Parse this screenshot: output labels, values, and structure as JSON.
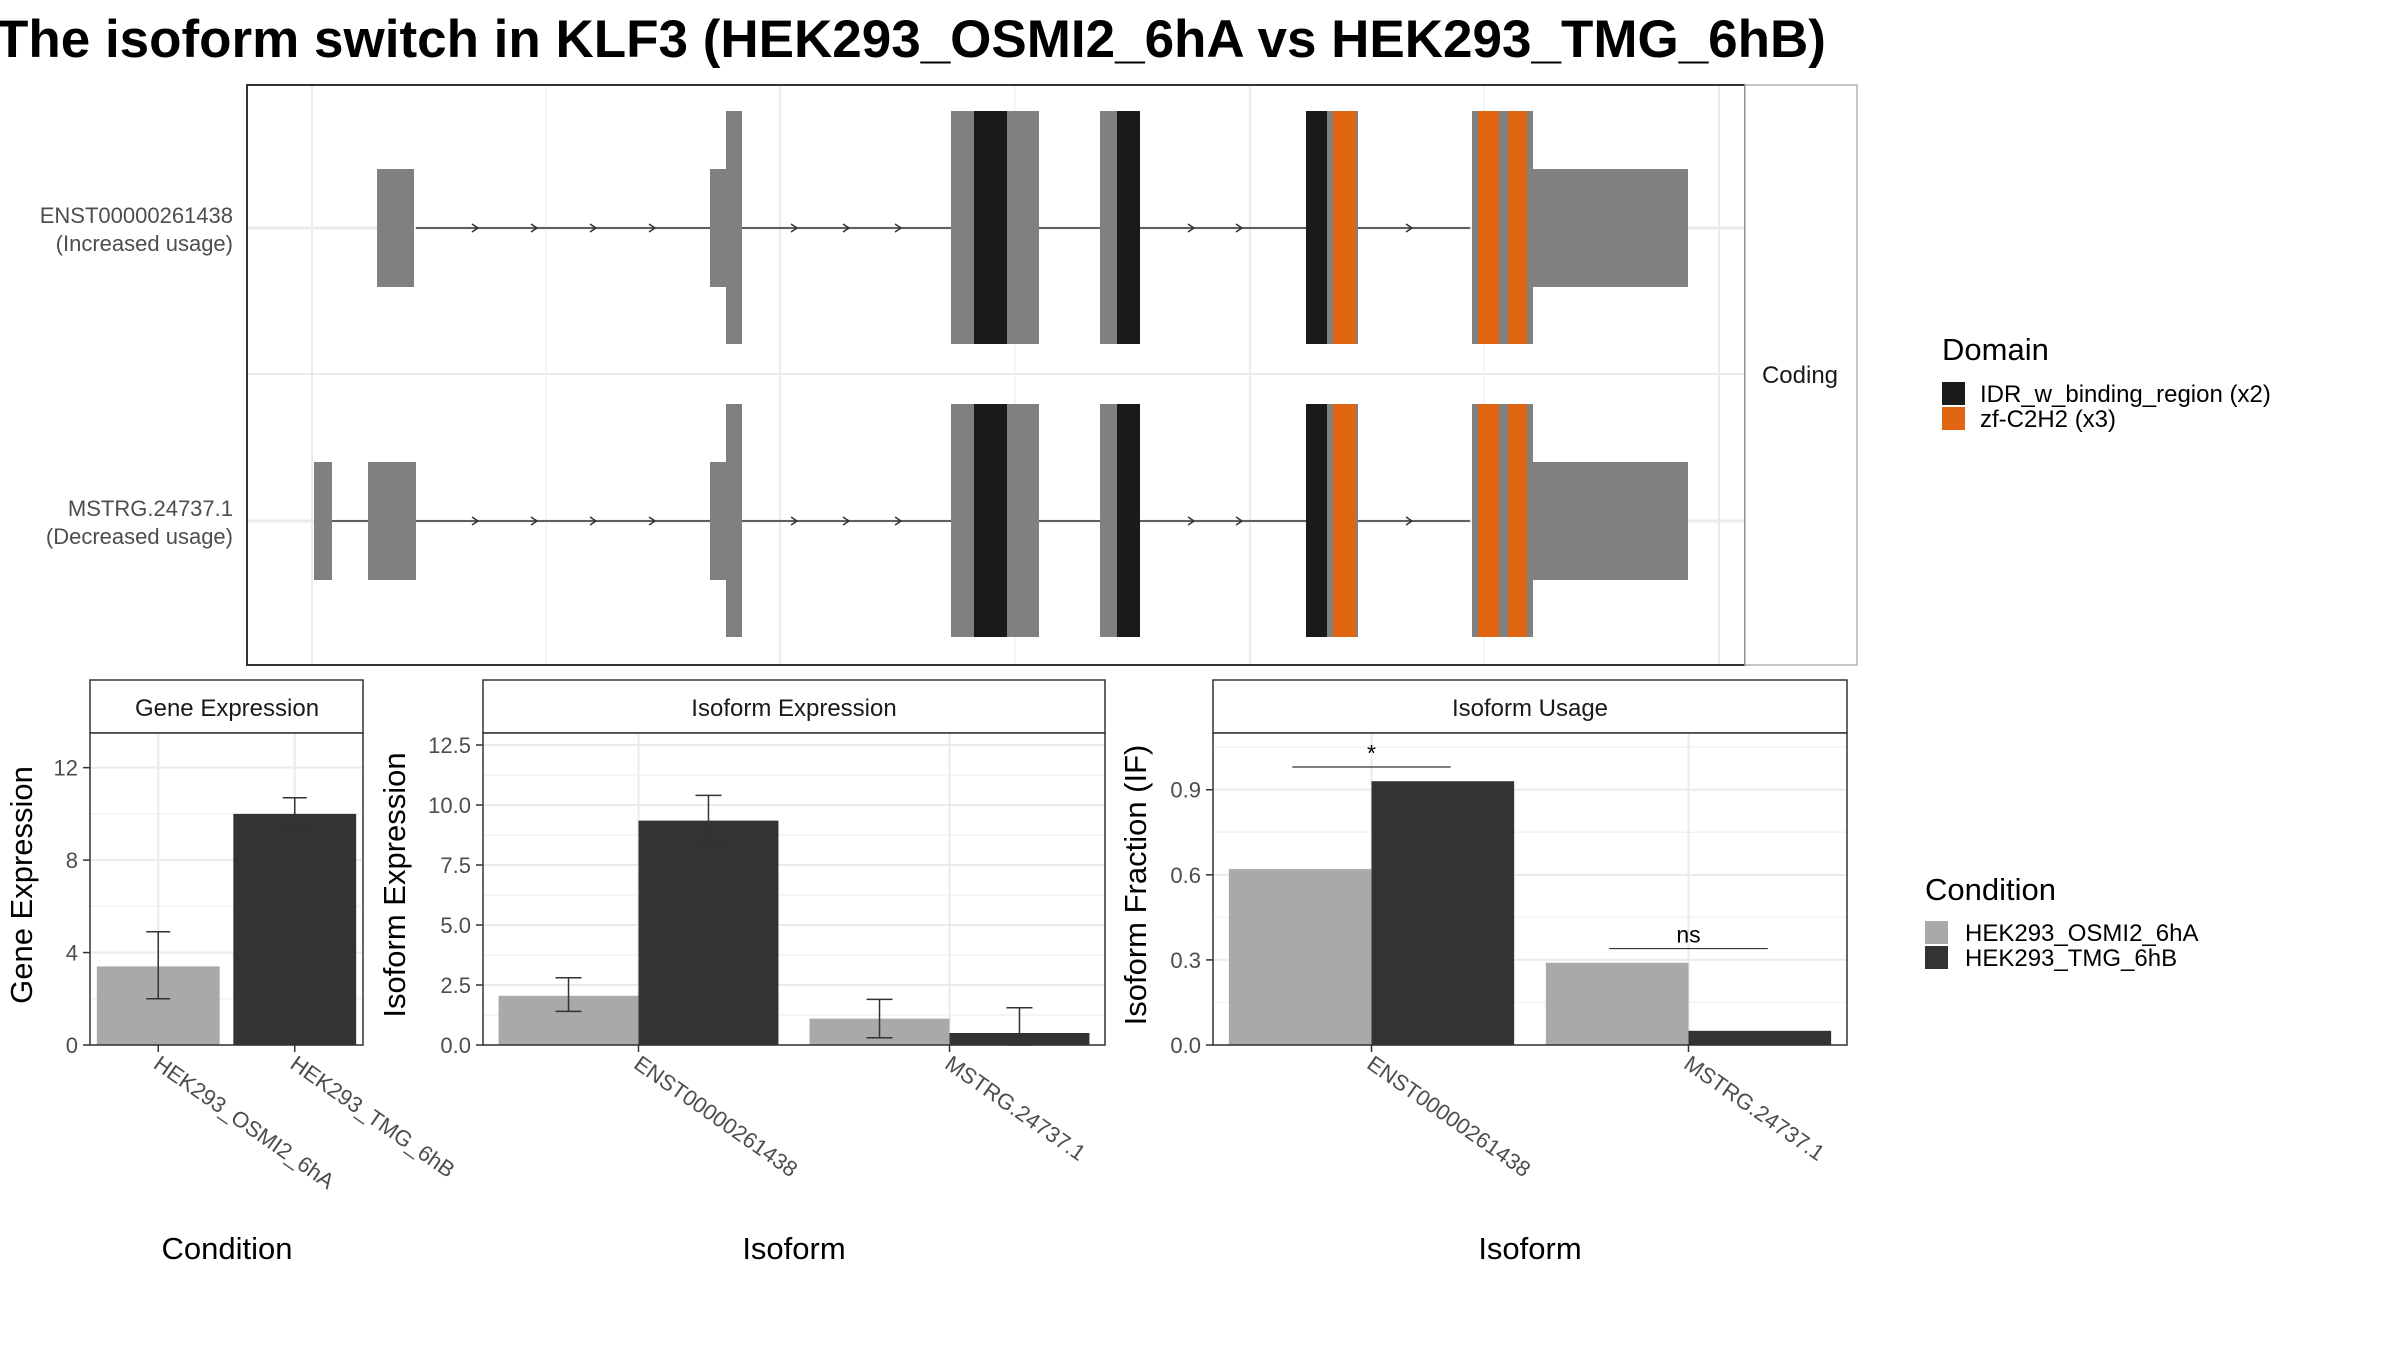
{
  "title": "The isoform switch in KLF3 (HEK293_OSMI2_6hA vs HEK293_TMG_6hB)",
  "colors": {
    "exon": "#808080",
    "cond_a": "#a9a9a9",
    "cond_b": "#333333",
    "panel_border": "#333333",
    "strip_fill": "#ffffff",
    "grid": "#ebebeb"
  },
  "transcript_panel": {
    "facet_label": "Coding",
    "transcripts": [
      {
        "id": "tx1",
        "name": "ENST00000261438",
        "status": "(Increased usage)"
      },
      {
        "id": "tx2",
        "name": "MSTRG.24737.1",
        "status": "(Decreased usage)"
      }
    ],
    "domain_legend": {
      "title": "Domain",
      "items": [
        {
          "label": "IDR_w_binding_region (x2)",
          "color": "#1a1a1a"
        },
        {
          "label": "zf-C2H2 (x3)",
          "color": "#e06614"
        }
      ]
    }
  },
  "condition_legend": {
    "title": "Condition",
    "items": [
      {
        "label": "HEK293_OSMI2_6hA",
        "color": "#a9a9a9"
      },
      {
        "label": "HEK293_TMG_6hB",
        "color": "#333333"
      }
    ]
  },
  "chart_data": [
    {
      "type": "bar",
      "id": "gene",
      "title": "Gene Expression",
      "xlabel": "Condition",
      "ylabel": "Gene Expression",
      "ylim": [
        0,
        13.5
      ],
      "yticks": [
        0,
        4,
        8,
        12
      ],
      "ytick_labels": [
        "0",
        "4",
        "8",
        "12"
      ],
      "categories": [
        "HEK293_OSMI2_6hA",
        "HEK293_TMG_6hB"
      ],
      "values": [
        3.4,
        10.0
      ],
      "errors": [
        [
          2.0,
          4.9
        ],
        [
          9.3,
          10.7
        ]
      ]
    },
    {
      "type": "bar",
      "id": "iso_expr",
      "title": "Isoform Expression",
      "xlabel": "Isoform",
      "ylabel": "Isoform Expression",
      "ylim": [
        0,
        13
      ],
      "yticks": [
        0,
        2.5,
        5,
        7.5,
        10,
        12.5
      ],
      "ytick_labels": [
        "0.0",
        "2.5",
        "5.0",
        "7.5",
        "10.0",
        "12.5"
      ],
      "categories": [
        "ENST00000261438",
        "MSTRG.24737.1"
      ],
      "series": [
        {
          "name": "HEK293_OSMI2_6hA",
          "values": [
            2.05,
            1.1
          ],
          "errors": [
            [
              1.4,
              2.8
            ],
            [
              0.3,
              1.9
            ]
          ]
        },
        {
          "name": "HEK293_TMG_6hB",
          "values": [
            9.35,
            0.5
          ],
          "errors": [
            [
              8.4,
              10.4
            ],
            [
              0.0,
              1.55
            ]
          ]
        }
      ]
    },
    {
      "type": "bar",
      "id": "iso_usage",
      "title": "Isoform Usage",
      "xlabel": "Isoform",
      "ylabel": "Isoform Fraction (IF)",
      "ylim": [
        0,
        1.1
      ],
      "yticks": [
        0,
        0.3,
        0.6,
        0.9
      ],
      "ytick_labels": [
        "0.0",
        "0.3",
        "0.6",
        "0.9"
      ],
      "categories": [
        "ENST00000261438",
        "MSTRG.24737.1"
      ],
      "series": [
        {
          "name": "HEK293_OSMI2_6hA",
          "values": [
            0.62,
            0.29
          ]
        },
        {
          "name": "HEK293_TMG_6hB",
          "values": [
            0.93,
            0.05
          ]
        }
      ],
      "significance": [
        {
          "label": "*",
          "category": 0,
          "y": 0.98
        },
        {
          "label": "ns",
          "category": 1,
          "y": 0.34
        }
      ]
    }
  ]
}
